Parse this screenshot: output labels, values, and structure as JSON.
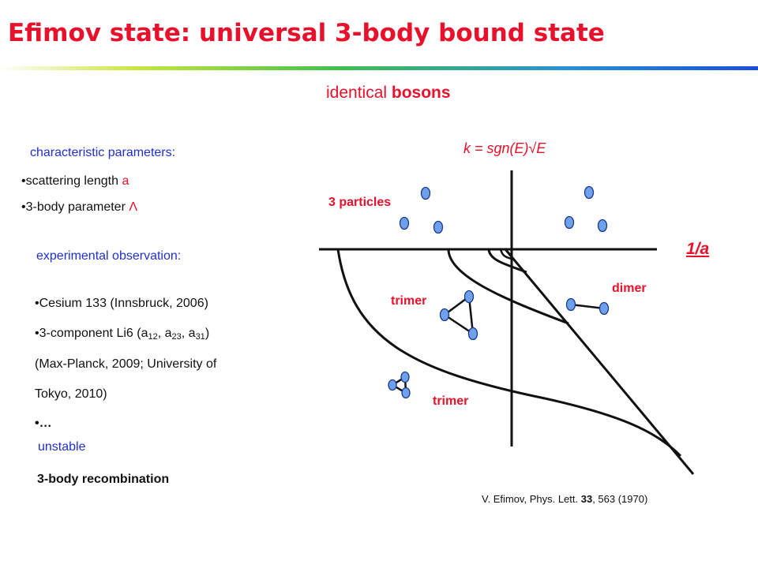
{
  "slide": {
    "title": "Efimov state: universal 3-body bound state",
    "subtitle_plain": "identical ",
    "subtitle_bold": "bosons"
  },
  "left": {
    "params_heading": "characteristic parameters:",
    "param1_text": "•scattering length ",
    "param1_var": "a",
    "param2_text": "•3-body parameter ",
    "param2_var": "Λ",
    "exp_heading": "experimental observation:",
    "exp1": "•Cesium 133 (Innsbruck, 2006)",
    "exp2_prefix": "•3-component Li6 (a",
    "exp2_s1": "12",
    "exp2_mid1": ", a",
    "exp2_s2": "23",
    "exp2_mid2": ", a",
    "exp2_s3": "31",
    "exp2_suffix": ")",
    "exp3": "(Max-Planck, 2009; University of",
    "exp4": "Tokyo, 2010)",
    "exp5": "•…",
    "unstable": "unstable",
    "recombination": "3-body recombination"
  },
  "diagram": {
    "y_axis_label": "k = sgn(E)√E",
    "x_axis_label": "1/a",
    "label_three_particles": "3 particles",
    "label_dimer": "dimer",
    "label_trimer_upper": "trimer",
    "label_trimer_lower": "trimer"
  },
  "citation": {
    "prefix": "V. Efimov, Phys. Lett. ",
    "volume": "33",
    "suffix": ", 563 (1970)"
  },
  "colors": {
    "title": "#e8102a",
    "blue_text": "#1f2fd0",
    "particle_fill": "#6fa0ea",
    "particle_stroke": "#1a3a90"
  }
}
